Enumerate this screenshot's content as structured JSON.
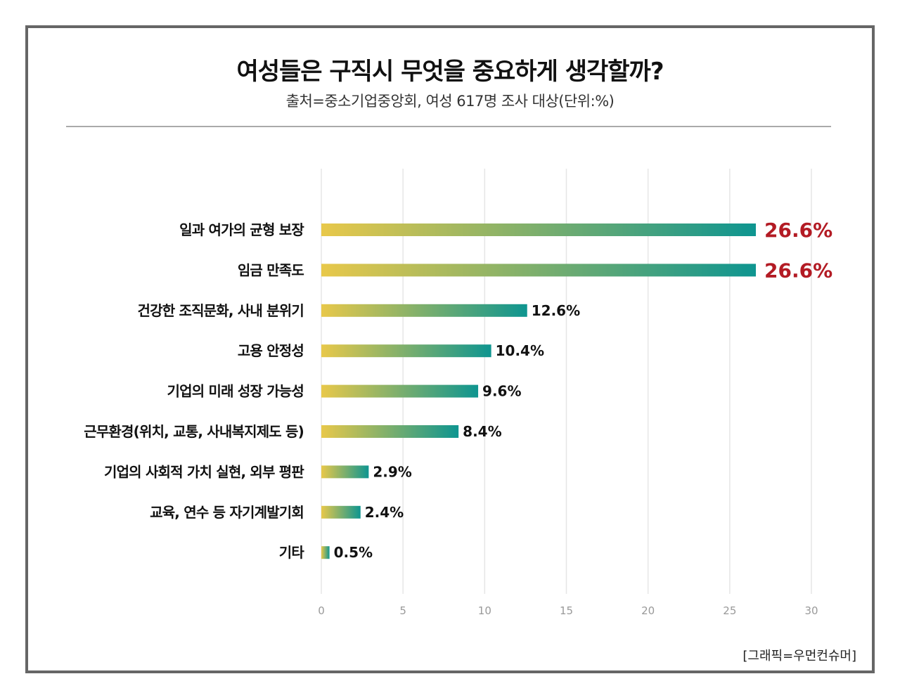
{
  "title": "여성들은 구직시 무엇을 중요하게 생각할까?",
  "subtitle": "출처=중소기업중앙회, 여성 617명 조사 대상(단위:%)",
  "credit": "[그래픽=우먼컨슈머]",
  "colors": {
    "bar_start": "#e8c84a",
    "bar_end": "#0e9590",
    "highlight": "#b31b24",
    "grid": "#e6e6e6",
    "tick": "#999999"
  },
  "chart_data": {
    "type": "bar",
    "orientation": "horizontal",
    "title": "여성들은 구직시 무엇을 중요하게 생각할까?",
    "xlabel": "",
    "ylabel": "",
    "xlim": [
      0,
      30
    ],
    "xticks": [
      0,
      5,
      10,
      15,
      20,
      25,
      30
    ],
    "grid": true,
    "categories": [
      "일과 여가의 균형 보장",
      "임금 만족도",
      "건강한 조직문화, 사내 분위기",
      "고용 안정성",
      "기업의 미래 성장 가능성",
      "근무환경(위치, 교통, 사내복지제도 등)",
      "기업의 사회적 가치 실현, 외부 평판",
      "교육, 연수 등 자기계발기회",
      "기타"
    ],
    "values": [
      26.6,
      26.6,
      12.6,
      10.4,
      9.6,
      8.4,
      2.9,
      2.4,
      0.5
    ],
    "labels": [
      "26.6%",
      "26.6%",
      "12.6%",
      "10.4%",
      "9.6%",
      "8.4%",
      "2.9%",
      "2.4%",
      "0.5%"
    ],
    "highlighted": [
      true,
      true,
      false,
      false,
      false,
      false,
      false,
      false,
      false
    ]
  }
}
